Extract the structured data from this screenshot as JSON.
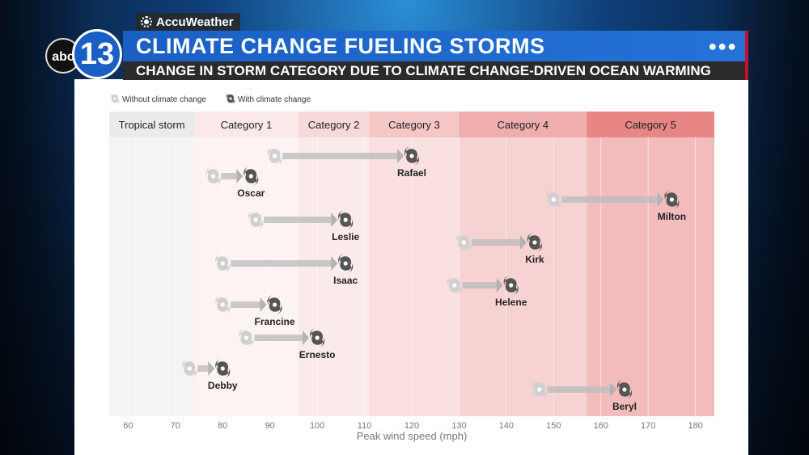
{
  "broadcast": {
    "brand": "AccuWeather",
    "station_logo": "abc",
    "station_number": "13",
    "headline": "CLIMATE CHANGE FUELING STORMS",
    "subheadline": "CHANGE IN STORM CATEGORY DUE TO CLIMATE CHANGE-DRIVEN OCEAN WARMING",
    "menu_icon": "ellipsis-icon"
  },
  "chart_data": {
    "type": "scatter",
    "xlabel": "Peak wind speed (mph)",
    "xlim": [
      56,
      184
    ],
    "ticks": [
      60,
      70,
      80,
      90,
      100,
      110,
      120,
      130,
      140,
      150,
      160,
      170,
      180
    ],
    "legend": {
      "without": "Without climate change",
      "with": "With climate change",
      "placement": "top-left"
    },
    "categories": [
      {
        "name": "Tropical storm",
        "from": 56,
        "to": 74,
        "color": "#ebebeb"
      },
      {
        "name": "Category 1",
        "from": 74,
        "to": 96,
        "color": "#fbe9e9"
      },
      {
        "name": "Category 2",
        "from": 96,
        "to": 111,
        "color": "#f8d9d9"
      },
      {
        "name": "Category 3",
        "from": 111,
        "to": 130,
        "color": "#f5c6c6"
      },
      {
        "name": "Category 4",
        "from": 130,
        "to": 157,
        "color": "#efadad"
      },
      {
        "name": "Category 5",
        "from": 157,
        "to": 184,
        "color": "#e88585"
      }
    ],
    "storms": [
      {
        "name": "Rafael",
        "without": 91,
        "with": 120
      },
      {
        "name": "Oscar",
        "without": 78,
        "with": 86
      },
      {
        "name": "Milton",
        "without": 150,
        "with": 175
      },
      {
        "name": "Leslie",
        "without": 87,
        "with": 106
      },
      {
        "name": "Kirk",
        "without": 131,
        "with": 146
      },
      {
        "name": "Isaac",
        "without": 80,
        "with": 106
      },
      {
        "name": "Helene",
        "without": 129,
        "with": 141
      },
      {
        "name": "Francine",
        "without": 80,
        "with": 91
      },
      {
        "name": "Ernesto",
        "without": 85,
        "with": 100
      },
      {
        "name": "Debby",
        "without": 73,
        "with": 80
      },
      {
        "name": "Beryl",
        "without": 147,
        "with": 165
      }
    ]
  }
}
